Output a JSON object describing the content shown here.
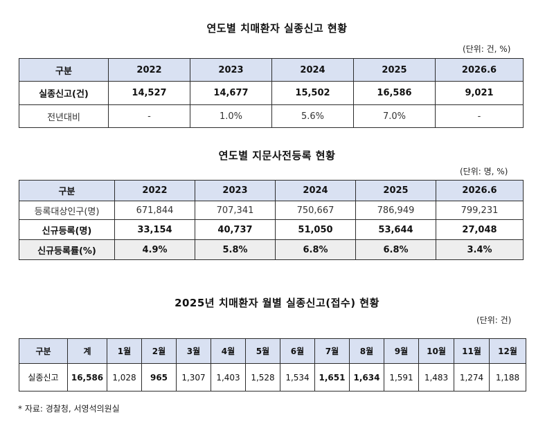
{
  "table1": {
    "title": "연도별 치매환자 실종신고 현황",
    "unit": "(단위: 건, %)",
    "headers": [
      "구분",
      "2022",
      "2023",
      "2024",
      "2025",
      "2026.6"
    ],
    "rows": [
      [
        "실종신고(건)",
        "14,527",
        "14,677",
        "15,502",
        "16,586",
        "9,021"
      ],
      [
        "전년대비",
        "-",
        "1.0%",
        "5.6%",
        "7.0%",
        "-"
      ]
    ]
  },
  "table2": {
    "title": "연도별 지문사전등록 현황",
    "unit": "(단위: 명, %)",
    "headers": [
      "구분",
      "2022",
      "2023",
      "2024",
      "2025",
      "2026.6"
    ],
    "rows": [
      [
        "등록대상인구(명)",
        "671,844",
        "707,341",
        "750,667",
        "786,949",
        "799,231"
      ],
      [
        "신규등록(명)",
        "33,154",
        "40,737",
        "51,050",
        "53,644",
        "27,048"
      ],
      [
        "신규등록률(%)",
        "4.9%",
        "5.8%",
        "6.8%",
        "6.8%",
        "3.4%"
      ]
    ]
  },
  "table3": {
    "title": "2025년 치매환자 월별 실종신고(접수) 현황",
    "unit": "(단위: 건)",
    "headers": [
      "구분",
      "계",
      "1월",
      "2월",
      "3월",
      "4월",
      "5월",
      "6월",
      "7월",
      "8월",
      "9월",
      "10월",
      "11월",
      "12월"
    ],
    "rows": [
      [
        "실종신고",
        "16,586",
        "1,028",
        "965",
        "1,307",
        "1,403",
        "1,528",
        "1,534",
        "1,651",
        "1,634",
        "1,591",
        "1,483",
        "1,274",
        "1,188"
      ]
    ]
  },
  "footnote": "* 자료: 경찰청, 서영석의원실"
}
